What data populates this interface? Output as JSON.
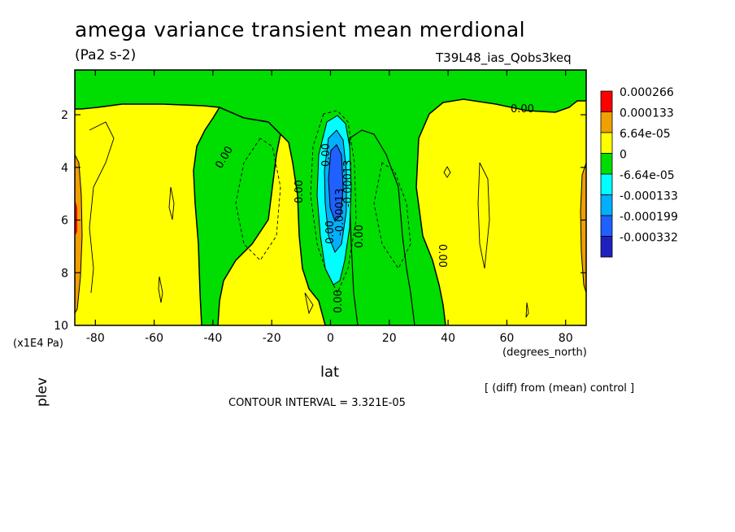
{
  "chart_data": {
    "type": "heatmap",
    "title": "amega variance transient mean merdional",
    "units": "(Pa2 s-2)",
    "run_label": "T39L48_ias_Qobs3keq",
    "xlabel": "lat",
    "xunits": "(degrees_north)",
    "ylabel": "plev",
    "yunits": "(x1E4 Pa)",
    "xlim": [
      -87,
      87
    ],
    "ylim": [
      10,
      0.3
    ],
    "x_ticks": [
      -80,
      -60,
      -40,
      -20,
      0,
      20,
      40,
      60,
      80
    ],
    "x_tick_labels": [
      "-80",
      "-60",
      "-40",
      "-20",
      "0",
      "20",
      "40",
      "60",
      "80"
    ],
    "y_ticks": [
      2,
      4,
      6,
      8,
      10
    ],
    "y_tick_labels": [
      "2",
      "4",
      "6",
      "8",
      "10"
    ],
    "legend": {
      "placement": "right",
      "levels": [
        "0.000266",
        "0.000133",
        "6.64e-05",
        "0",
        "-6.64e-05",
        "-0.000133",
        "-0.000199",
        "-0.000332"
      ],
      "colors": [
        "#ff0000",
        "#f0a000",
        "#ffff00",
        "#00dd00",
        "#00ffff",
        "#00b0ff",
        "#2060ff",
        "#2020c0"
      ]
    },
    "contour_labels": [
      "0.00",
      "0.00",
      "0.00",
      "0.00",
      "0.00",
      "0.00",
      "0.00",
      "0.00",
      "-0.00013",
      "-0.00013"
    ],
    "contour_interval_text": "CONTOUR INTERVAL = 3.321E-05",
    "comparison_note": "[ (diff) from (mean) control ]"
  }
}
